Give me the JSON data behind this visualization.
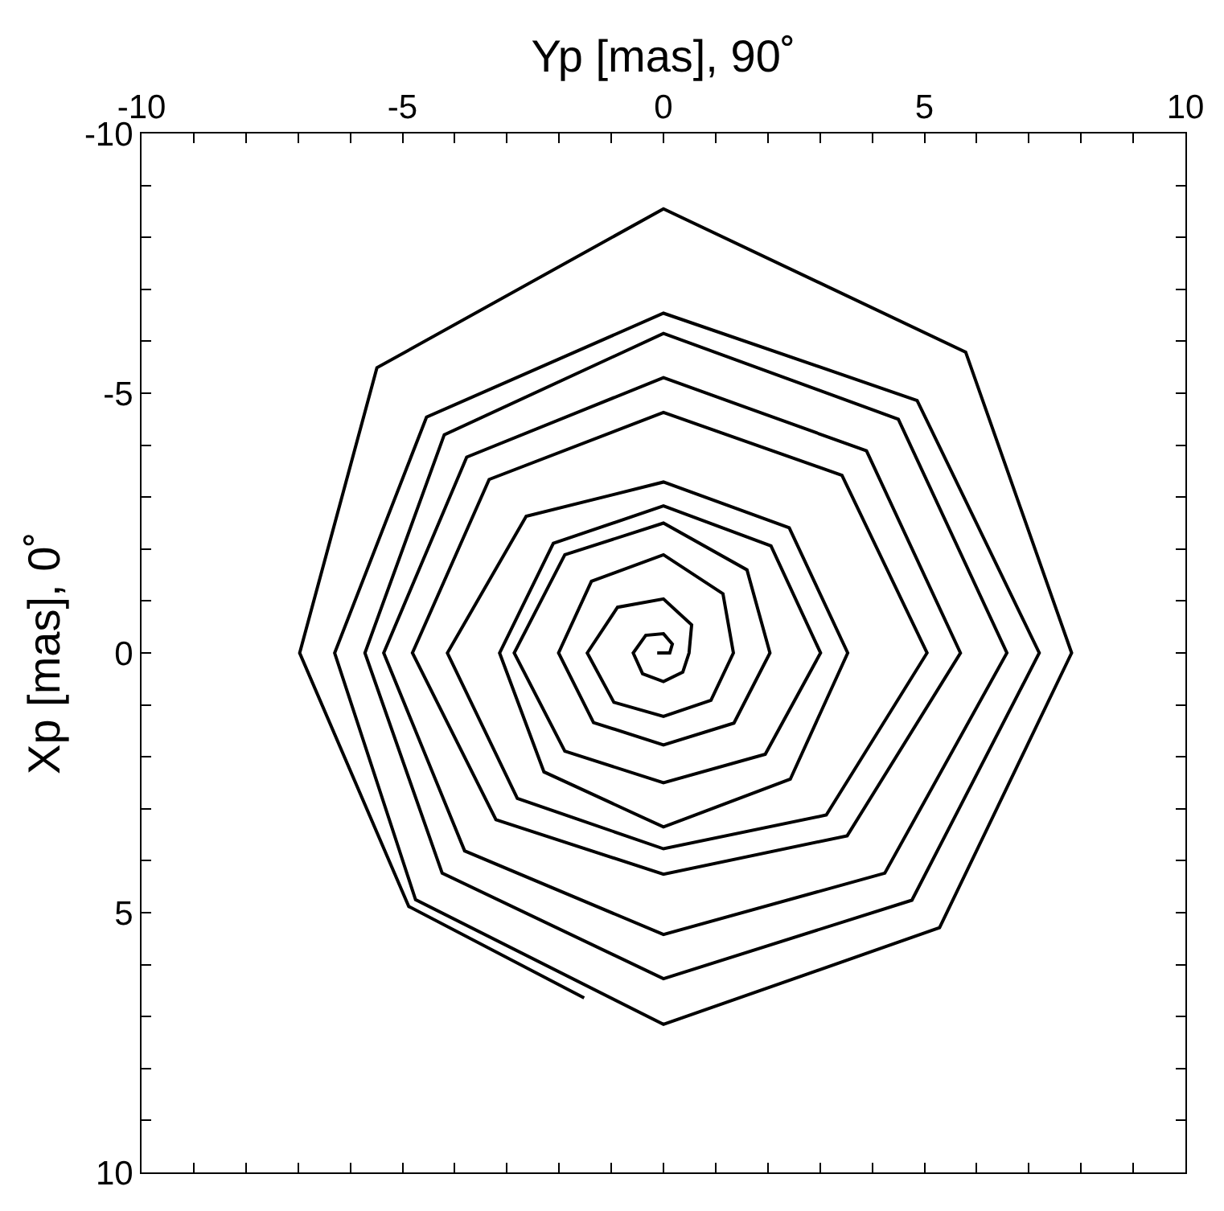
{
  "chart_data": {
    "type": "line",
    "xlabel": "Yp [mas], 90˚",
    "ylabel": "Xp [mas], 0˚",
    "xlim": [
      -10,
      10
    ],
    "ylim": [
      10,
      -10
    ],
    "xticks": [
      -10,
      {
        "value": -9,
        "label": null
      },
      {
        "value": -8,
        "label": null
      },
      {
        "value": -7,
        "label": null
      },
      {
        "value": -6,
        "label": null
      },
      -5,
      {
        "value": -4,
        "label": null
      },
      {
        "value": -3,
        "label": null
      },
      {
        "value": -2,
        "label": null
      },
      {
        "value": -1,
        "label": null
      },
      0,
      {
        "value": 1,
        "label": null
      },
      {
        "value": 2,
        "label": null
      },
      {
        "value": 3,
        "label": null
      },
      {
        "value": 4,
        "label": null
      },
      5,
      {
        "value": 6,
        "label": null
      },
      {
        "value": 7,
        "label": null
      },
      {
        "value": 8,
        "label": null
      },
      {
        "value": 9,
        "label": null
      },
      10
    ],
    "yticks": [
      -10,
      {
        "value": -9,
        "label": null
      },
      {
        "value": -8,
        "label": null
      },
      {
        "value": -7,
        "label": null
      },
      {
        "value": -6,
        "label": null
      },
      -5,
      {
        "value": -4,
        "label": null
      },
      {
        "value": -3,
        "label": null
      },
      {
        "value": -2,
        "label": null
      },
      {
        "value": -1,
        "label": null
      },
      0,
      {
        "value": 1,
        "label": null
      },
      {
        "value": 2,
        "label": null
      },
      {
        "value": 3,
        "label": null
      },
      {
        "value": 4,
        "label": null
      },
      5,
      {
        "value": 6,
        "label": null
      },
      {
        "value": 7,
        "label": null
      },
      {
        "value": 8,
        "label": null
      },
      {
        "value": 9,
        "label": null
      },
      10
    ],
    "legend": false,
    "marker": "none",
    "line_style": "solid",
    "series": [
      {
        "color": "#000000",
        "x": [
          -0.12,
          0.12,
          0.17,
          0,
          -0.34,
          -0.58,
          -0.4,
          0,
          0.37,
          0.49,
          0.54,
          0,
          -0.88,
          -1.46,
          -0.95,
          0,
          0.91,
          1.34,
          1.14,
          0,
          -1.38,
          -2.01,
          -1.34,
          0,
          1.35,
          2.04,
          1.6,
          0,
          -1.89,
          -2.86,
          -1.89,
          0,
          1.95,
          3.01,
          2.06,
          0,
          -2.11,
          -3.14,
          -2.29,
          0,
          2.43,
          3.53,
          2.41,
          0,
          -2.63,
          -4.14,
          -2.8,
          0,
          3.12,
          5.05,
          3.42,
          0,
          -3.34,
          -4.81,
          -3.21,
          0,
          3.52,
          5.69,
          3.89,
          0,
          -3.77,
          -5.36,
          -3.81,
          0,
          4.24,
          6.58,
          4.5,
          0,
          -4.2,
          -5.72,
          -4.24,
          0,
          4.76,
          7.2,
          4.86,
          0,
          -4.54,
          -6.3,
          -4.75,
          0,
          5.29,
          7.82,
          5.79,
          0,
          -5.49,
          -6.97,
          -4.88,
          -1.52
        ],
        "values": [
          0,
          0,
          -0.17,
          -0.37,
          -0.34,
          0,
          0.4,
          0.55,
          0.37,
          0,
          -0.54,
          -1.04,
          -0.88,
          0,
          0.95,
          1.22,
          0.91,
          0,
          -1.14,
          -1.89,
          -1.38,
          0,
          1.34,
          1.77,
          1.35,
          0,
          -1.6,
          -2.5,
          -1.89,
          0,
          1.89,
          2.5,
          1.95,
          0,
          -2.06,
          -2.83,
          -2.11,
          0,
          2.29,
          3.35,
          2.43,
          0,
          -2.41,
          -3.29,
          -2.63,
          0,
          2.8,
          3.77,
          3.12,
          0,
          -3.42,
          -4.63,
          -3.34,
          0,
          3.21,
          4.26,
          3.52,
          0,
          -3.89,
          -5.3,
          -3.77,
          0,
          3.81,
          5.42,
          4.24,
          0,
          -4.5,
          -6.15,
          -4.2,
          0,
          4.24,
          6.27,
          4.76,
          0,
          -4.86,
          -6.54,
          -4.54,
          0,
          4.75,
          7.15,
          5.29,
          0,
          -5.79,
          -8.55,
          -5.49,
          0,
          4.88,
          6.64
        ]
      }
    ]
  }
}
